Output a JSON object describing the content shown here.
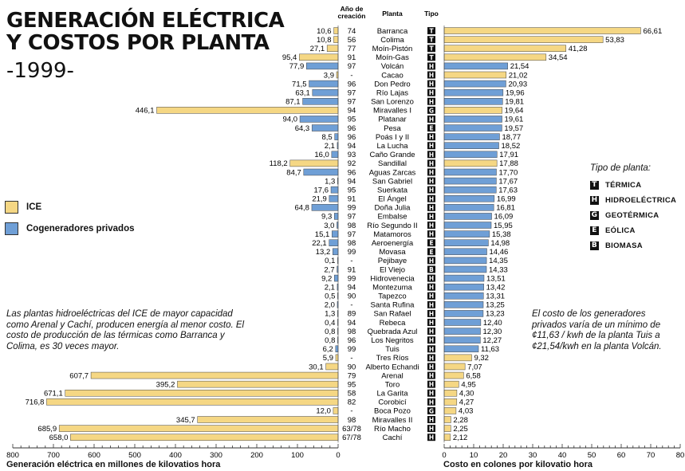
{
  "title_line1": "GENERACIÓN ELÉCTRICA",
  "title_line2": "Y COSTOS POR PLANTA",
  "year": "-1999-",
  "headers": {
    "year": "Año de creación",
    "plant": "Planta",
    "type": "Tipo"
  },
  "legend": {
    "ice": "ICE",
    "private": "Cogeneradores privados",
    "type_heading": "Tipo de planta:",
    "types": [
      {
        "code": "T",
        "label": "TÉRMICA"
      },
      {
        "code": "H",
        "label": "HIDROELÉCTRICA"
      },
      {
        "code": "G",
        "label": "GEOTÉRMICA"
      },
      {
        "code": "E",
        "label": "EÓLICA"
      },
      {
        "code": "B",
        "label": "BIOMASA"
      }
    ]
  },
  "note_left": "Las plantas hidroeléctricas del ICE de mayor capacidad como Arenal y Cachí, producen energía al menor costo. El costo de producción de las térmicas como Barranca y Colima, es 30 veces mayor.",
  "note_right": "El costo de los generadores privados varía de un mínimo de ¢11,63 / kwh de la planta Tuis a ¢21,54/kwh en la planta Volcán.",
  "colors": {
    "ice": "#f5d784",
    "private": "#6f9fd6"
  },
  "chart_data": {
    "type": "bar",
    "left_axis": {
      "label": "Generación eléctrica en millones de kilovatios hora",
      "range": [
        0,
        800
      ],
      "ticks": [
        800,
        700,
        600,
        500,
        400,
        300,
        200,
        100,
        0
      ]
    },
    "right_axis": {
      "label": "Costo en colones por kilovatio hora",
      "range": [
        0,
        80
      ],
      "ticks": [
        0,
        10,
        20,
        30,
        40,
        50,
        60,
        70,
        80
      ]
    },
    "plants": [
      {
        "name": "Barranca",
        "year": "74",
        "type": "T",
        "generation": 10.6,
        "gen_label": "10,6",
        "cost": 66.61,
        "cost_label": "66,61",
        "owner": "ice"
      },
      {
        "name": "Colima",
        "year": "56",
        "type": "T",
        "generation": 10.8,
        "gen_label": "10,8",
        "cost": 53.83,
        "cost_label": "53,83",
        "owner": "ice"
      },
      {
        "name": "Moín-Pistón",
        "year": "77",
        "type": "T",
        "generation": 27.1,
        "gen_label": "27,1",
        "cost": 41.28,
        "cost_label": "41,28",
        "owner": "ice"
      },
      {
        "name": "Moín-Gas",
        "year": "91",
        "type": "T",
        "generation": 95.4,
        "gen_label": "95,4",
        "cost": 34.54,
        "cost_label": "34,54",
        "owner": "ice"
      },
      {
        "name": "Volcán",
        "year": "97",
        "type": "H",
        "generation": 77.9,
        "gen_label": "77,9",
        "cost": 21.54,
        "cost_label": "21,54",
        "owner": "private"
      },
      {
        "name": "Cacao",
        "year": "-",
        "type": "H",
        "generation": 3.9,
        "gen_label": "3,9",
        "cost": 21.02,
        "cost_label": "21,02",
        "owner": "ice"
      },
      {
        "name": "Don Pedro",
        "year": "96",
        "type": "H",
        "generation": 71.5,
        "gen_label": "71,5",
        "cost": 20.93,
        "cost_label": "20,93",
        "owner": "private"
      },
      {
        "name": "Río Lajas",
        "year": "97",
        "type": "H",
        "generation": 63.1,
        "gen_label": "63,1",
        "cost": 19.96,
        "cost_label": "19,96",
        "owner": "private"
      },
      {
        "name": "San Lorenzo",
        "year": "97",
        "type": "H",
        "generation": 87.1,
        "gen_label": "87,1",
        "cost": 19.81,
        "cost_label": "19,81",
        "owner": "private"
      },
      {
        "name": "Miravalles I",
        "year": "94",
        "type": "G",
        "generation": 446.1,
        "gen_label": "446,1",
        "cost": 19.64,
        "cost_label": "19,64",
        "owner": "ice"
      },
      {
        "name": "Platanar",
        "year": "95",
        "type": "H",
        "generation": 94.0,
        "gen_label": "94,0",
        "cost": 19.61,
        "cost_label": "19,61",
        "owner": "private"
      },
      {
        "name": "Pesa",
        "year": "96",
        "type": "E",
        "generation": 64.3,
        "gen_label": "64,3",
        "cost": 19.57,
        "cost_label": "19,57",
        "owner": "private"
      },
      {
        "name": "Poás I y II",
        "year": "96",
        "type": "H",
        "generation": 8.5,
        "gen_label": "8,5",
        "cost": 18.77,
        "cost_label": "18,77",
        "owner": "private"
      },
      {
        "name": "La Lucha",
        "year": "94",
        "type": "H",
        "generation": 2.1,
        "gen_label": "2,1",
        "cost": 18.52,
        "cost_label": "18,52",
        "owner": "private"
      },
      {
        "name": "Caño Grande",
        "year": "93",
        "type": "H",
        "generation": 16.0,
        "gen_label": "16,0",
        "cost": 17.91,
        "cost_label": "17,91",
        "owner": "private"
      },
      {
        "name": "Sandillal",
        "year": "92",
        "type": "H",
        "generation": 118.2,
        "gen_label": "118,2",
        "cost": 17.88,
        "cost_label": "17,88",
        "owner": "ice"
      },
      {
        "name": "Aguas Zarcas",
        "year": "96",
        "type": "H",
        "generation": 84.7,
        "gen_label": "84,7",
        "cost": 17.7,
        "cost_label": "17,70",
        "owner": "private"
      },
      {
        "name": "San Gabriel",
        "year": "94",
        "type": "H",
        "generation": 1.3,
        "gen_label": "1,3",
        "cost": 17.67,
        "cost_label": "17,67",
        "owner": "private"
      },
      {
        "name": "Suerkata",
        "year": "95",
        "type": "H",
        "generation": 17.6,
        "gen_label": "17,6",
        "cost": 17.63,
        "cost_label": "17,63",
        "owner": "private"
      },
      {
        "name": "El Ángel",
        "year": "91",
        "type": "H",
        "generation": 21.9,
        "gen_label": "21,9",
        "cost": 16.99,
        "cost_label": "16,99",
        "owner": "private"
      },
      {
        "name": "Doña Julia",
        "year": "99",
        "type": "H",
        "generation": 64.8,
        "gen_label": "64,8",
        "cost": 16.81,
        "cost_label": "16,81",
        "owner": "private"
      },
      {
        "name": "Embalse",
        "year": "97",
        "type": "H",
        "generation": 9.3,
        "gen_label": "9,3",
        "cost": 16.09,
        "cost_label": "16,09",
        "owner": "private"
      },
      {
        "name": "Río Segundo II",
        "year": "98",
        "type": "H",
        "generation": 3.0,
        "gen_label": "3,0",
        "cost": 15.95,
        "cost_label": "15,95",
        "owner": "private"
      },
      {
        "name": "Matamoros",
        "year": "97",
        "type": "H",
        "generation": 15.1,
        "gen_label": "15,1",
        "cost": 15.38,
        "cost_label": "15,38",
        "owner": "private"
      },
      {
        "name": "Aeroenergía",
        "year": "98",
        "type": "E",
        "generation": 22.1,
        "gen_label": "22,1",
        "cost": 14.98,
        "cost_label": "14,98",
        "owner": "private"
      },
      {
        "name": "Movasa",
        "year": "99",
        "type": "E",
        "generation": 13.2,
        "gen_label": "13,2",
        "cost": 14.46,
        "cost_label": "14,46",
        "owner": "private"
      },
      {
        "name": "Pejibaye",
        "year": "-",
        "type": "H",
        "generation": 0.1,
        "gen_label": "0,1",
        "cost": 14.35,
        "cost_label": "14,35",
        "owner": "private"
      },
      {
        "name": "El Viejo",
        "year": "91",
        "type": "B",
        "generation": 2.7,
        "gen_label": "2,7",
        "cost": 14.33,
        "cost_label": "14,33",
        "owner": "private"
      },
      {
        "name": "Hidrovenecia",
        "year": "99",
        "type": "H",
        "generation": 9.2,
        "gen_label": "9,2",
        "cost": 13.51,
        "cost_label": "13,51",
        "owner": "private"
      },
      {
        "name": "Montezuma",
        "year": "94",
        "type": "H",
        "generation": 2.1,
        "gen_label": "2,1",
        "cost": 13.42,
        "cost_label": "13,42",
        "owner": "private"
      },
      {
        "name": "Tapezco",
        "year": "90",
        "type": "H",
        "generation": 0.5,
        "gen_label": "0,5",
        "cost": 13.31,
        "cost_label": "13,31",
        "owner": "private"
      },
      {
        "name": "Santa Rufina",
        "year": "-",
        "type": "H",
        "generation": 2.0,
        "gen_label": "2,0",
        "cost": 13.25,
        "cost_label": "13,25",
        "owner": "private"
      },
      {
        "name": "San Rafael",
        "year": "89",
        "type": "H",
        "generation": 1.3,
        "gen_label": "1,3",
        "cost": 13.23,
        "cost_label": "13,23",
        "owner": "private"
      },
      {
        "name": "Rebeca",
        "year": "94",
        "type": "H",
        "generation": 0.4,
        "gen_label": "0,4",
        "cost": 12.4,
        "cost_label": "12,40",
        "owner": "private"
      },
      {
        "name": "Quebrada Azul",
        "year": "98",
        "type": "H",
        "generation": 0.8,
        "gen_label": "0,8",
        "cost": 12.3,
        "cost_label": "12,30",
        "owner": "private"
      },
      {
        "name": "Los Negritos",
        "year": "96",
        "type": "H",
        "generation": 0.8,
        "gen_label": "0,8",
        "cost": 12.27,
        "cost_label": "12,27",
        "owner": "private"
      },
      {
        "name": "Tuis",
        "year": "99",
        "type": "H",
        "generation": 6.2,
        "gen_label": "6,2",
        "cost": 11.63,
        "cost_label": "11,63",
        "owner": "private"
      },
      {
        "name": "Tres Ríos",
        "year": "-",
        "type": "H",
        "generation": 5.9,
        "gen_label": "5,9",
        "cost": 9.32,
        "cost_label": "9,32",
        "owner": "ice"
      },
      {
        "name": "Alberto Echandi",
        "year": "90",
        "type": "H",
        "generation": 30.1,
        "gen_label": "30,1",
        "cost": 7.07,
        "cost_label": "7,07",
        "owner": "ice"
      },
      {
        "name": "Arenal",
        "year": "79",
        "type": "H",
        "generation": 607.7,
        "gen_label": "607,7",
        "cost": 6.58,
        "cost_label": "6,58",
        "owner": "ice"
      },
      {
        "name": "Toro",
        "year": "95",
        "type": "H",
        "generation": 395.2,
        "gen_label": "395,2",
        "cost": 4.95,
        "cost_label": "4,95",
        "owner": "ice"
      },
      {
        "name": "La Garita",
        "year": "58",
        "type": "H",
        "generation": 671.1,
        "gen_label": "671,1",
        "cost": 4.3,
        "cost_label": "4,30",
        "owner": "ice"
      },
      {
        "name": "Corobicí",
        "year": "82",
        "type": "H",
        "generation": 716.8,
        "gen_label": "716,8",
        "cost": 4.27,
        "cost_label": "4,27",
        "owner": "ice"
      },
      {
        "name": "Boca Pozo",
        "year": "-",
        "type": "G",
        "generation": 12.0,
        "gen_label": "12,0",
        "cost": 4.03,
        "cost_label": "4,03",
        "owner": "ice"
      },
      {
        "name": "Miravalles II",
        "year": "98",
        "type": "H",
        "generation": 345.7,
        "gen_label": "345,7",
        "cost": 2.28,
        "cost_label": "2,28",
        "owner": "ice"
      },
      {
        "name": "Río Macho",
        "year": "63/78",
        "type": "H",
        "generation": 685.9,
        "gen_label": "685,9",
        "cost": 2.25,
        "cost_label": "2,25",
        "owner": "ice"
      },
      {
        "name": "Cachí",
        "year": "67/78",
        "type": "H",
        "generation": 658.0,
        "gen_label": "658,0",
        "cost": 2.12,
        "cost_label": "2,12",
        "owner": "ice"
      }
    ]
  }
}
